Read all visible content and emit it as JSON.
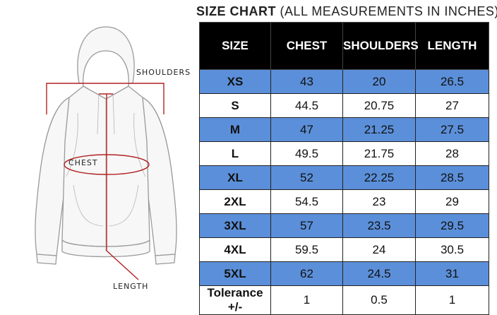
{
  "title": {
    "bold": "SIZE CHART",
    "rest": " (ALL MEASUREMENTS IN INCHES)"
  },
  "figure": {
    "shoulders_label": "SHOULDERS",
    "chest_label": "CHEST",
    "length_label": "LENGTH",
    "marker_color": "#b22222"
  },
  "table": {
    "headers": [
      "SIZE",
      "CHEST",
      "SHOULDERS",
      "LENGTH"
    ],
    "rows": [
      [
        "XS",
        "43",
        "20",
        "26.5"
      ],
      [
        "S",
        "44.5",
        "20.75",
        "27"
      ],
      [
        "M",
        "47",
        "21.25",
        "27.5"
      ],
      [
        "L",
        "49.5",
        "21.75",
        "28"
      ],
      [
        "XL",
        "52",
        "22.25",
        "28.5"
      ],
      [
        "2XL",
        "54.5",
        "23",
        "29"
      ],
      [
        "3XL",
        "57",
        "23.5",
        "29.5"
      ],
      [
        "4XL",
        "59.5",
        "24",
        "30.5"
      ],
      [
        "5XL",
        "62",
        "24.5",
        "31"
      ],
      [
        "Tolerance +/-",
        "1",
        "0.5",
        "1"
      ]
    ],
    "highlight_color": "#5b8fd9",
    "header_color": "#000000"
  }
}
